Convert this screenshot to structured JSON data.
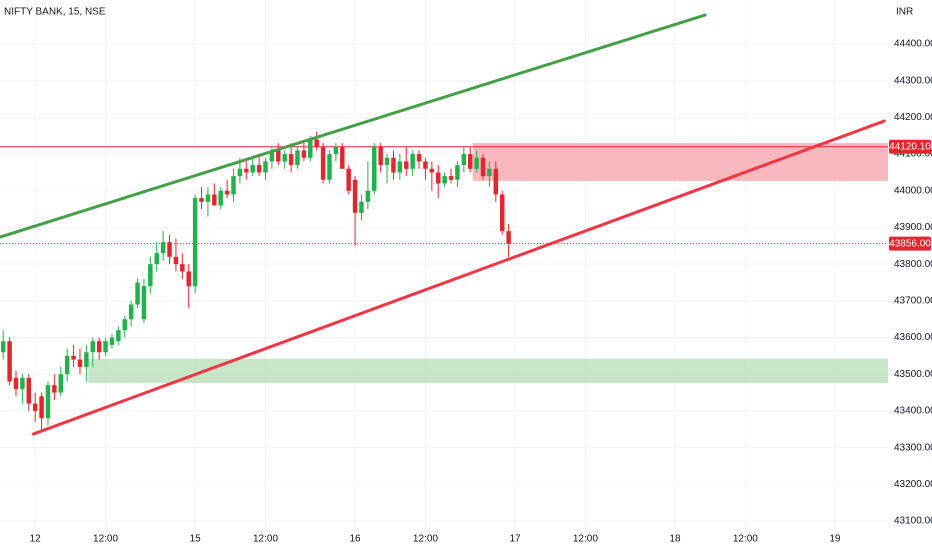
{
  "chart_data": {
    "type": "candlestick",
    "title": "NIFTY BANK, 15, NSE",
    "currency": "INR",
    "up_color": "#22b14c",
    "down_color": "#e2262f",
    "grid": true,
    "xlim": [
      -0.5,
      138.3
    ],
    "ylim": [
      43070,
      44520
    ],
    "xticks": [
      {
        "value": 5,
        "label": "12"
      },
      {
        "value": 16,
        "label": "12:00"
      },
      {
        "value": 30,
        "label": "15"
      },
      {
        "value": 41,
        "label": "12:00"
      },
      {
        "value": 55,
        "label": "16"
      },
      {
        "value": 66,
        "label": "12:00"
      },
      {
        "value": 80,
        "label": "17"
      },
      {
        "value": 91,
        "label": "12:00"
      },
      {
        "value": 105,
        "label": "18"
      },
      {
        "value": 116,
        "label": "12:00"
      },
      {
        "value": 130,
        "label": "19"
      }
    ],
    "yticks": [
      {
        "value": 43100,
        "label": "43100.00"
      },
      {
        "value": 43200,
        "label": "43200.00"
      },
      {
        "value": 43300,
        "label": "43300.00"
      },
      {
        "value": 43400,
        "label": "43400.00"
      },
      {
        "value": 43500,
        "label": "43500.00"
      },
      {
        "value": 43600,
        "label": "43600.00"
      },
      {
        "value": 43700,
        "label": "43700.00"
      },
      {
        "value": 43800,
        "label": "43800.00"
      },
      {
        "value": 43900,
        "label": "43900.00"
      },
      {
        "value": 44000,
        "label": "44000.00"
      },
      {
        "value": 44100,
        "label": "44100.00"
      },
      {
        "value": 44200,
        "label": "44200.00"
      },
      {
        "value": 44300,
        "label": "44300.00"
      },
      {
        "value": 44400,
        "label": "44400.00"
      }
    ],
    "open": [
      43560,
      43590,
      43490,
      43460,
      43490,
      43420,
      43440,
      43380,
      43470,
      43450,
      43500,
      43550,
      43540,
      43520,
      43560,
      43590,
      43560,
      43580,
      43590,
      43620,
      43650,
      43690,
      43650,
      43740,
      43800,
      43830,
      43860,
      43820,
      43800,
      43780,
      43740,
      43980,
      43970,
      43990,
      43960,
      44000,
      43990,
      44040,
      44060,
      44050,
      44070,
      44050,
      44080,
      44110,
      44080,
      44100,
      44070,
      44110,
      44090,
      44140,
      44120,
      44030,
      44100,
      44120,
      44060,
      44030,
      43940,
      43970,
      44000,
      44120,
      44070,
      44090,
      44050,
      44080,
      44060,
      44100,
      44080,
      44060,
      44050,
      44020,
      44040,
      44030,
      44070,
      44100,
      44060,
      44090,
      44040,
      44060,
      43990,
      43890
    ],
    "high": [
      43620,
      43600,
      43510,
      43500,
      43500,
      43450,
      43450,
      43480,
      43500,
      43520,
      43570,
      43580,
      43570,
      43580,
      43600,
      43600,
      43600,
      43610,
      43630,
      43660,
      43700,
      43760,
      43760,
      43820,
      43860,
      43890,
      43880,
      43870,
      43830,
      43800,
      43990,
      44010,
      44010,
      44020,
      44010,
      44030,
      44060,
      44090,
      44080,
      44090,
      44100,
      44090,
      44120,
      44130,
      44110,
      44130,
      44120,
      44130,
      44150,
      44160,
      44130,
      44110,
      44130,
      44130,
      44070,
      44040,
      43990,
      44080,
      44130,
      44130,
      44100,
      44110,
      44100,
      44120,
      44110,
      44110,
      44090,
      44080,
      44070,
      44050,
      44060,
      44080,
      44120,
      44120,
      44110,
      44100,
      44080,
      44080,
      44000,
      43910
    ],
    "low": [
      43540,
      43470,
      43440,
      43420,
      43400,
      43370,
      43350,
      43360,
      43430,
      43440,
      43480,
      43520,
      43500,
      43480,
      43520,
      43540,
      43550,
      43570,
      43580,
      43600,
      43630,
      43680,
      43640,
      43720,
      43780,
      43810,
      43800,
      43780,
      43760,
      43680,
      43720,
      43950,
      43930,
      43960,
      43950,
      43980,
      43970,
      44020,
      44030,
      44040,
      44040,
      44030,
      44060,
      44070,
      44060,
      44050,
      44060,
      44080,
      44080,
      44110,
      44020,
      44020,
      44080,
      44060,
      43990,
      43850,
      43920,
      43950,
      43990,
      44050,
      44020,
      44030,
      44030,
      44040,
      44040,
      44060,
      44030,
      44000,
      43980,
      44010,
      44020,
      44010,
      44050,
      44050,
      44050,
      44030,
      44010,
      43970,
      43880,
      43820
    ],
    "close": [
      43590,
      43480,
      43460,
      43490,
      43420,
      43400,
      43380,
      43470,
      43450,
      43500,
      43550,
      43540,
      43520,
      43560,
      43590,
      43560,
      43590,
      43600,
      43620,
      43650,
      43690,
      43750,
      43740,
      43800,
      43830,
      43860,
      43820,
      43800,
      43780,
      43740,
      43980,
      43970,
      43990,
      43960,
      44000,
      43990,
      44040,
      44060,
      44050,
      44070,
      44050,
      44080,
      44110,
      44080,
      44100,
      44070,
      44110,
      44090,
      44140,
      44120,
      44030,
      44100,
      44120,
      44060,
      44000,
      43940,
      43970,
      44000,
      44120,
      44070,
      44090,
      44050,
      44080,
      44060,
      44100,
      44080,
      44060,
      44050,
      44020,
      44040,
      44030,
      44070,
      44100,
      44060,
      44090,
      44040,
      44060,
      43990,
      43890,
      43856
    ],
    "trend_lines": [
      {
        "color": "#43a047",
        "x": [
          -0.47,
          109.7
        ],
        "y": [
          43874,
          44479
        ]
      },
      {
        "color": "#f23645",
        "x": [
          4.7,
          137.7
        ],
        "y": [
          43337,
          44190
        ]
      }
    ],
    "zones": [
      {
        "color": "#f7a6ad",
        "x": [
          73.4,
          138.3
        ],
        "y": [
          44027,
          44130
        ]
      },
      {
        "color": "#b9dfb9",
        "x": [
          13.3,
          138.3
        ],
        "y": [
          43476,
          43542
        ]
      }
    ],
    "price_lines": [
      {
        "value": 44120.1,
        "label": "44120.10",
        "color": "#e2262f",
        "style": "solid"
      },
      {
        "value": 43856,
        "label": "43856.00",
        "color": "#e2262f",
        "style": "dotted"
      }
    ]
  }
}
